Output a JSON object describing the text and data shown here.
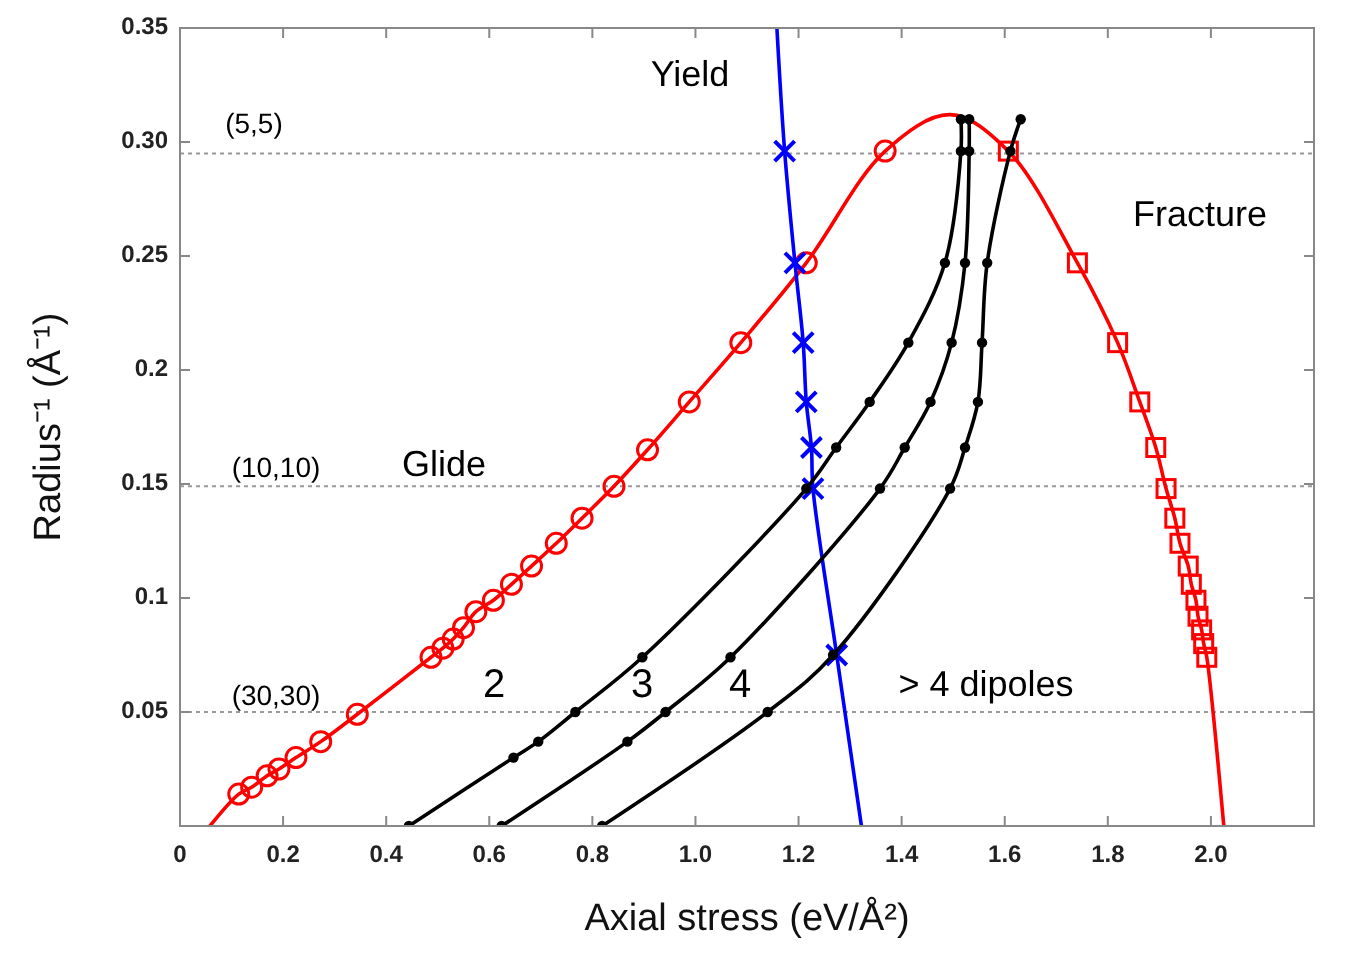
{
  "chart_data": {
    "type": "line",
    "xlabel": "Axial stress (eV/Å²)",
    "ylabel": "Radius⁻¹ (Å⁻¹)",
    "xlim": [
      0,
      2.2
    ],
    "ylim": [
      0,
      0.35
    ],
    "xticks": [
      0,
      0.2,
      0.4,
      0.6,
      0.8,
      {
        "value": 1,
        "label": "1.0"
      },
      1.2,
      1.4,
      1.6,
      1.8,
      {
        "value": 2,
        "label": "2.0"
      }
    ],
    "yticks": [
      0.05,
      0.1,
      0.15,
      0.2,
      0.25,
      {
        "value": 0.3,
        "label": "0.30"
      },
      0.35
    ],
    "grid": false,
    "ref_lines": [
      {
        "axis": "y",
        "value": 0.295,
        "color": "#999999",
        "line_style": "dotted"
      },
      {
        "axis": "y",
        "value": 0.149,
        "color": "#999999",
        "line_style": "dotted"
      },
      {
        "axis": "y",
        "value": 0.05,
        "color": "#999999",
        "line_style": "dotted"
      }
    ],
    "annotations": [
      "Yield",
      "Glide",
      "Fracture",
      "2",
      "3",
      "4",
      "> 4 dipoles",
      "(5,5)",
      "(10,10)",
      "(30,30)"
    ],
    "series": [
      {
        "type": "line",
        "color": "#ff0000",
        "marker": "none",
        "x": [
          0.058,
          0.114,
          0.139,
          0.169,
          0.192,
          0.225,
          0.273,
          0.344,
          0.487,
          0.51,
          0.53,
          0.55,
          0.574,
          0.608,
          0.643,
          0.682,
          0.73,
          0.78,
          0.842,
          0.907,
          0.988,
          1.088,
          1.215,
          1.368,
          1.494,
          1.607,
          1.741,
          1.819,
          1.862,
          1.893,
          1.913,
          1.93,
          1.94,
          1.956,
          1.962,
          1.971,
          1.975,
          1.982,
          1.986,
          1.992,
          2.025
        ],
        "values": [
          0,
          0.014,
          0.017,
          0.022,
          0.025,
          0.03,
          0.037,
          0.049,
          0.074,
          0.078,
          0.082,
          0.087,
          0.094,
          0.099,
          0.106,
          0.114,
          0.124,
          0.135,
          0.149,
          0.165,
          0.186,
          0.212,
          0.247,
          0.296,
          0.312,
          0.296,
          0.247,
          0.212,
          0.186,
          0.166,
          0.148,
          0.135,
          0.124,
          0.114,
          0.106,
          0.099,
          0.092,
          0.086,
          0.08,
          0.074,
          0
        ]
      },
      {
        "type": "scatter",
        "color": "#ff0000",
        "marker": "circle",
        "x": [
          0.114,
          0.139,
          0.169,
          0.192,
          0.225,
          0.273,
          0.344,
          0.487,
          0.51,
          0.53,
          0.55,
          0.574,
          0.608,
          0.643,
          0.682,
          0.73,
          0.78,
          0.842,
          0.907,
          0.988,
          1.088,
          1.215,
          1.368
        ],
        "values": [
          0.014,
          0.017,
          0.022,
          0.025,
          0.03,
          0.037,
          0.049,
          0.074,
          0.078,
          0.082,
          0.087,
          0.094,
          0.099,
          0.106,
          0.114,
          0.124,
          0.135,
          0.149,
          0.165,
          0.186,
          0.212,
          0.247,
          0.296
        ]
      },
      {
        "type": "scatter",
        "color": "#ff0000",
        "marker": "square",
        "x": [
          1.607,
          1.741,
          1.819,
          1.862,
          1.893,
          1.913,
          1.93,
          1.94,
          1.956,
          1.962,
          1.971,
          1.975,
          1.982,
          1.986,
          1.992
        ],
        "values": [
          0.296,
          0.247,
          0.212,
          0.186,
          0.166,
          0.148,
          0.135,
          0.124,
          0.114,
          0.106,
          0.099,
          0.092,
          0.086,
          0.08,
          0.074
        ]
      },
      {
        "type": "line",
        "color": "#0000ff",
        "marker": "none",
        "x": [
          1.158,
          1.173,
          1.193,
          1.209,
          1.215,
          1.225,
          1.228,
          1.274,
          1.322
        ],
        "values": [
          0.35,
          0.296,
          0.247,
          0.212,
          0.186,
          0.166,
          0.148,
          0.075,
          0
        ]
      },
      {
        "type": "scatter",
        "color": "#0000ff",
        "marker": "cross",
        "x": [
          1.173,
          1.193,
          1.209,
          1.215,
          1.225,
          1.228,
          1.274
        ],
        "values": [
          0.296,
          0.247,
          0.212,
          0.186,
          0.166,
          0.148,
          0.075
        ]
      },
      {
        "color": "#000000",
        "marker": "circle",
        "x": [
          0.444,
          0.647,
          0.695,
          0.767,
          0.897,
          1.215,
          1.273,
          1.338,
          1.413,
          1.484,
          1.515,
          1.515
        ],
        "values": [
          0,
          0.03,
          0.037,
          0.05,
          0.074,
          0.148,
          0.166,
          0.186,
          0.212,
          0.247,
          0.296,
          0.31
        ]
      },
      {
        "color": "#000000",
        "marker": "circle",
        "x": [
          0.624,
          0.868,
          0.942,
          1.068,
          1.358,
          1.406,
          1.456,
          1.497,
          1.523,
          1.531,
          1.531
        ],
        "values": [
          0,
          0.037,
          0.05,
          0.074,
          0.148,
          0.166,
          0.186,
          0.212,
          0.247,
          0.296,
          0.31
        ]
      },
      {
        "color": "#000000",
        "marker": "circle",
        "x": [
          0.819,
          1.14,
          1.267,
          1.494,
          1.523,
          1.548,
          1.556,
          1.566,
          1.611,
          1.631
        ],
        "values": [
          0,
          0.05,
          0.075,
          0.148,
          0.166,
          0.186,
          0.212,
          0.247,
          0.296,
          0.31
        ]
      }
    ]
  }
}
